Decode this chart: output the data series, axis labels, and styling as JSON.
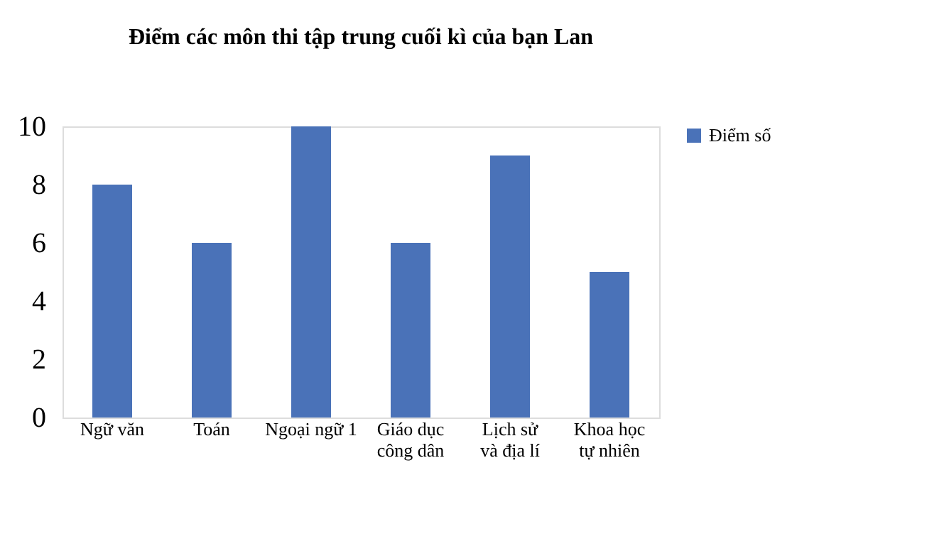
{
  "chart_data": {
    "type": "bar",
    "title": "Điểm các môn thi tập trung cuối kì của bạn Lan",
    "categories": [
      "Ngữ văn",
      "Toán",
      "Ngoại ngữ 1",
      "Giáo dục\ncông dân",
      "Lịch sử\nvà địa lí",
      "Khoa học\ntự nhiên"
    ],
    "series": [
      {
        "name": "Điểm số",
        "color": "#4a72b8",
        "values": [
          8,
          6,
          10,
          6,
          9,
          5
        ]
      }
    ],
    "ylim": [
      0,
      10
    ],
    "yticks": [
      0,
      2,
      4,
      6,
      8,
      10
    ],
    "grid": false,
    "legend": "right"
  }
}
